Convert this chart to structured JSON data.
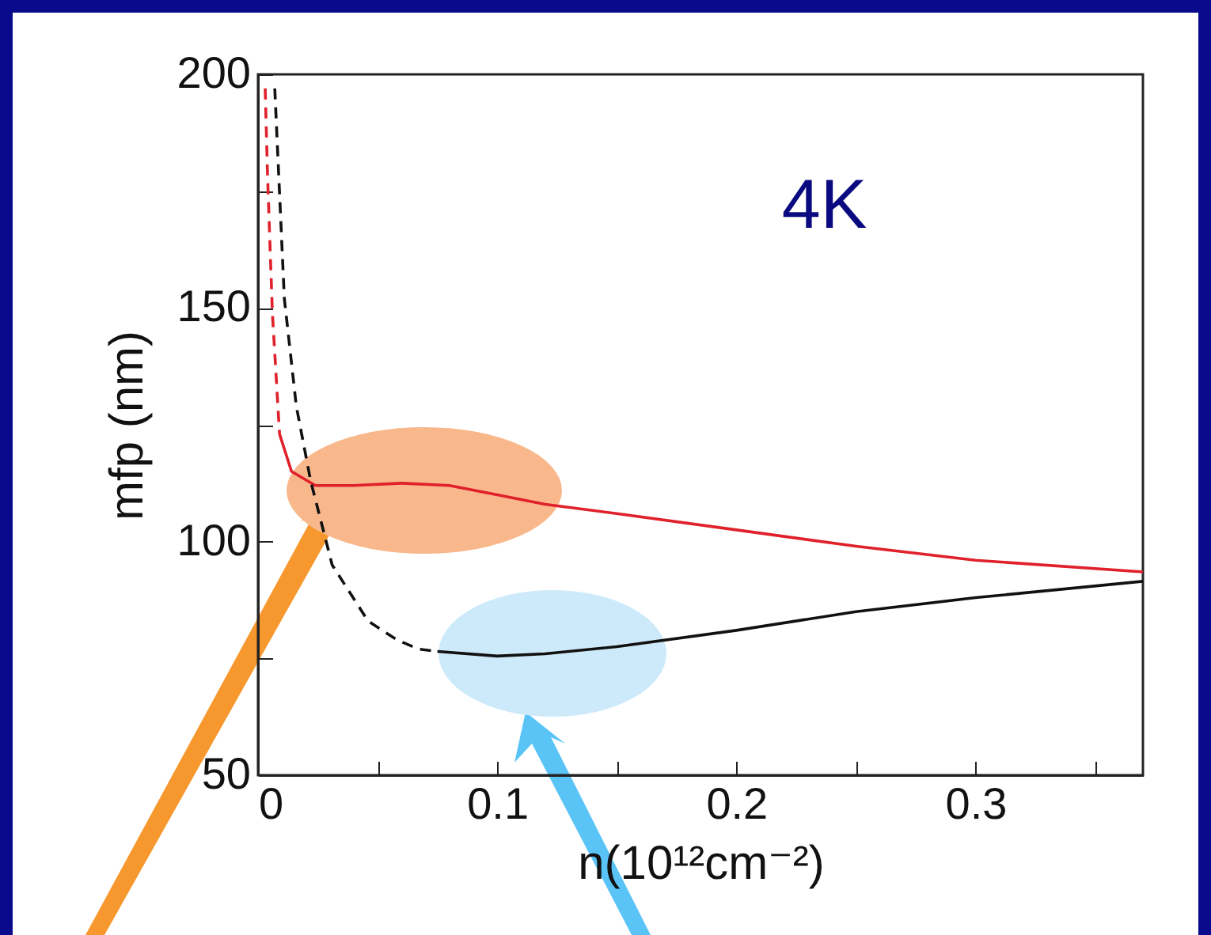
{
  "chart_data": {
    "type": "line",
    "xlabel": "n(10¹²cm⁻²)",
    "ylabel": "mfp (nm)",
    "annotations": [
      "4K"
    ],
    "xlim": [
      0,
      0.37
    ],
    "xticks": [
      0,
      {
        "value": 0.05,
        "label": null
      },
      0.1,
      {
        "value": 0.15,
        "label": null
      },
      0.2,
      {
        "value": 0.25,
        "label": null
      },
      0.3,
      {
        "value": 0.35,
        "label": null
      }
    ],
    "ylim": [
      50,
      200
    ],
    "yticks": [
      50,
      {
        "value": 75,
        "label": null
      },
      100,
      {
        "value": 125,
        "label": null
      },
      150,
      {
        "value": 175,
        "label": null
      },
      200
    ],
    "series": [
      {
        "color": "#e0202a",
        "line_style": "dashed",
        "x": [
          0.003,
          0.004,
          0.006,
          0.009
        ],
        "values": [
          197,
          178,
          149,
          123
        ]
      },
      {
        "color": "#e0202a",
        "line_style": "solid",
        "x": [
          0.009,
          0.014,
          0.024,
          0.04,
          0.06,
          0.08,
          0.1,
          0.12,
          0.15,
          0.2,
          0.25,
          0.3,
          0.37
        ],
        "values": [
          123,
          115,
          112,
          112,
          112.5,
          112,
          110,
          108,
          106,
          102.5,
          99,
          96,
          93.5
        ]
      },
      {
        "color": "#111111",
        "line_style": "dashed",
        "x": [
          0.007,
          0.011,
          0.016,
          0.022,
          0.031,
          0.046,
          0.058,
          0.067,
          0.075
        ],
        "values": [
          197,
          152,
          129,
          113,
          95,
          83,
          79,
          77,
          76.5
        ]
      },
      {
        "color": "#111111",
        "line_style": "solid",
        "x": [
          0.075,
          0.1,
          0.12,
          0.15,
          0.2,
          0.25,
          0.3,
          0.37
        ],
        "values": [
          76.5,
          75.5,
          76,
          77.5,
          81,
          85,
          88,
          91.5
        ]
      }
    ]
  }
}
